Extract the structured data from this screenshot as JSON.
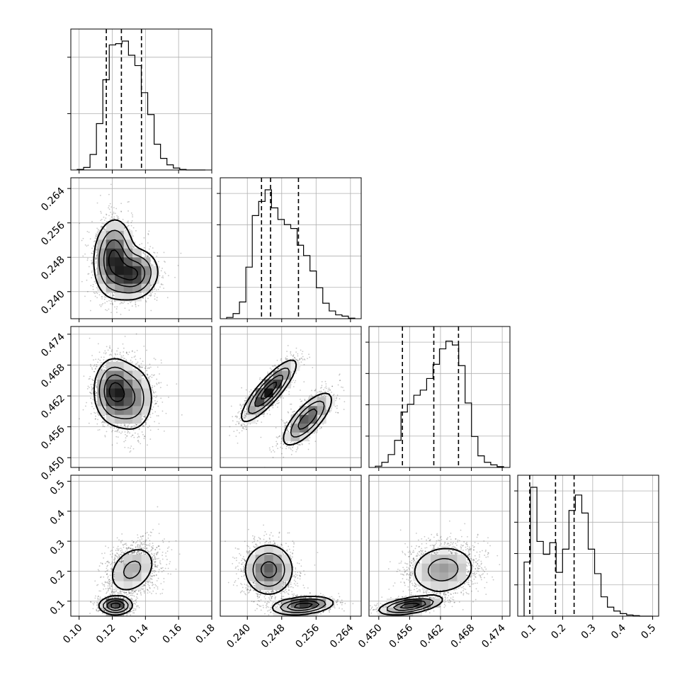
{
  "chart_data": {
    "type": "corner",
    "parameters": [
      {
        "range": [
          0.095,
          0.18
        ],
        "ticks": [
          "0.10",
          "0.12",
          "0.14",
          "0.16",
          "0.18"
        ],
        "tick_values": [
          0.1,
          0.12,
          0.14,
          0.16,
          0.18
        ],
        "quantiles": [
          0.1164,
          0.1255,
          0.1376
        ]
      },
      {
        "range": [
          0.2337,
          0.2665
        ],
        "ticks": [
          "0.240",
          "0.248",
          "0.256",
          "0.264"
        ],
        "tick_values": [
          0.24,
          0.248,
          0.256,
          0.264
        ],
        "quantiles": [
          0.2433,
          0.2454,
          0.2519
        ]
      },
      {
        "range": [
          0.4481,
          0.4755
        ],
        "ticks": [
          "0.450",
          "0.456",
          "0.462",
          "0.468",
          "0.474"
        ],
        "tick_values": [
          0.45,
          0.456,
          0.462,
          0.468,
          0.474
        ],
        "quantiles": [
          0.4546,
          0.4607,
          0.4655
        ]
      },
      {
        "range": [
          0.05,
          0.52
        ],
        "ticks": [
          "0.1",
          "0.2",
          "0.3",
          "0.4",
          "0.5"
        ],
        "tick_values": [
          0.1,
          0.2,
          0.3,
          0.4,
          0.5
        ],
        "quantiles": [
          0.09,
          0.176,
          0.238
        ]
      }
    ],
    "histograms": [
      [
        0.004,
        0.02,
        0.12,
        0.36,
        0.7,
        0.97,
        0.98,
        1.0,
        0.89,
        0.81,
        0.6,
        0.43,
        0.2,
        0.09,
        0.04,
        0.015,
        0.004,
        0.0,
        0.0,
        0.0
      ],
      [
        0.01,
        0.04,
        0.13,
        0.4,
        0.8,
        0.91,
        1.0,
        0.86,
        0.77,
        0.73,
        0.7,
        0.57,
        0.49,
        0.37,
        0.24,
        0.12,
        0.06,
        0.03,
        0.02,
        0.004
      ],
      [
        0.01,
        0.04,
        0.1,
        0.21,
        0.43,
        0.49,
        0.56,
        0.6,
        0.69,
        0.8,
        0.92,
        0.98,
        0.95,
        0.79,
        0.5,
        0.24,
        0.09,
        0.04,
        0.02,
        0.006
      ],
      [
        0.42,
        1.0,
        0.58,
        0.48,
        0.57,
        0.34,
        0.52,
        0.82,
        0.94,
        0.8,
        0.52,
        0.33,
        0.15,
        0.07,
        0.04,
        0.02,
        0.009,
        0.004,
        0.0,
        0.0
      ]
    ],
    "grid": true,
    "pairs": [
      {
        "row": 1,
        "col": 0,
        "components": [
          {
            "mx": 0.1205,
            "my": 0.248,
            "sx": 0.006,
            "sy": 0.0045,
            "r": 0.1,
            "w": 0.55
          },
          {
            "mx": 0.133,
            "my": 0.244,
            "sx": 0.0075,
            "sy": 0.003,
            "r": 0.1,
            "w": 0.45
          }
        ]
      },
      {
        "row": 2,
        "col": 0,
        "components": [
          {
            "mx": 0.1205,
            "my": 0.463,
            "sx": 0.006,
            "sy": 0.0032,
            "r": 0.0,
            "w": 0.55
          },
          {
            "mx": 0.132,
            "my": 0.4615,
            "sx": 0.007,
            "sy": 0.0035,
            "r": 0.0,
            "w": 0.45
          }
        ]
      },
      {
        "row": 2,
        "col": 1,
        "components": [
          {
            "mx": 0.245,
            "my": 0.463,
            "sx": 0.0032,
            "sy": 0.003,
            "r": 0.85,
            "w": 0.55
          },
          {
            "mx": 0.254,
            "my": 0.4575,
            "sx": 0.003,
            "sy": 0.0027,
            "r": 0.75,
            "w": 0.45
          }
        ]
      },
      {
        "row": 3,
        "col": 0,
        "components": [
          {
            "mx": 0.132,
            "my": 0.205,
            "sx": 0.008,
            "sy": 0.045,
            "r": 0.3,
            "w": 0.65
          },
          {
            "mx": 0.122,
            "my": 0.085,
            "sx": 0.005,
            "sy": 0.015,
            "r": 0.0,
            "w": 0.35
          }
        ]
      },
      {
        "row": 3,
        "col": 1,
        "components": [
          {
            "mx": 0.245,
            "my": 0.205,
            "sx": 0.003,
            "sy": 0.045,
            "r": 0.0,
            "w": 0.65
          },
          {
            "mx": 0.253,
            "my": 0.085,
            "sx": 0.0035,
            "sy": 0.015,
            "r": 0.3,
            "w": 0.35
          }
        ]
      },
      {
        "row": 3,
        "col": 2,
        "components": [
          {
            "mx": 0.4625,
            "my": 0.205,
            "sx": 0.0035,
            "sy": 0.045,
            "r": 0.1,
            "w": 0.65
          },
          {
            "mx": 0.456,
            "my": 0.085,
            "sx": 0.003,
            "sy": 0.015,
            "r": 0.5,
            "w": 0.35
          }
        ]
      }
    ]
  }
}
